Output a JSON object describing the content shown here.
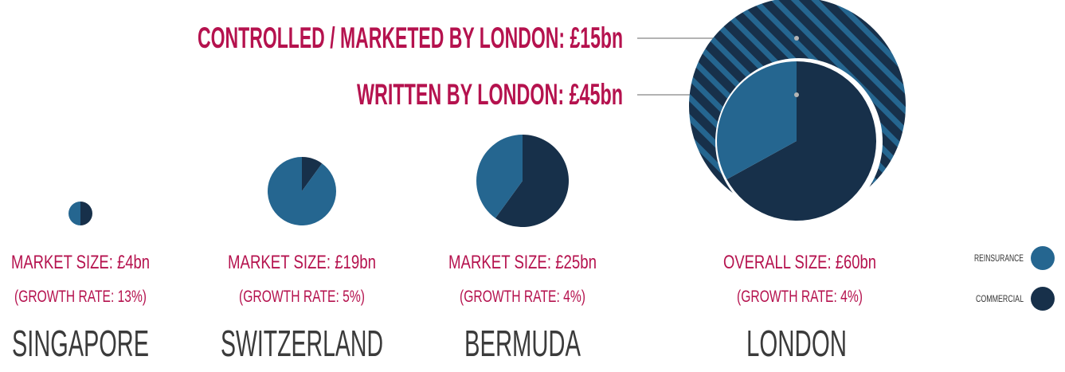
{
  "colors": {
    "reinsurance": "#256690",
    "commercial": "#17304a",
    "accent": "#b5124e",
    "name": "#3b3b3b"
  },
  "callouts": {
    "controlled": "CONTROLLED / MARKETED BY LONDON: £15bn",
    "written": "WRITTEN BY LONDON: £45bn"
  },
  "legend": {
    "reinsurance": "REINSURANCE",
    "commercial": "COMMERCIAL"
  },
  "chart_data": {
    "type": "pie",
    "series_names": [
      "REINSURANCE",
      "COMMERCIAL"
    ],
    "markets": [
      {
        "name": "SINGAPORE",
        "size_label": "MARKET SIZE: £4bn",
        "growth_label": "(GROWTH RATE: 13%)",
        "size_bn": 4,
        "growth_pct": 13,
        "reinsurance_share": 0.5
      },
      {
        "name": "SWITZERLAND",
        "size_label": "MARKET SIZE: £19bn",
        "growth_label": "(GROWTH RATE: 5%)",
        "size_bn": 19,
        "growth_pct": 5,
        "reinsurance_share": 0.9
      },
      {
        "name": "BERMUDA",
        "size_label": "MARKET SIZE: £25bn",
        "growth_label": "(GROWTH RATE: 4%)",
        "size_bn": 25,
        "growth_pct": 4,
        "reinsurance_share": 0.4
      },
      {
        "name": "LONDON",
        "size_label": "OVERALL SIZE: £60bn",
        "growth_label": "(GROWTH RATE: 4%)",
        "size_bn": 60,
        "growth_pct": 4,
        "reinsurance_share": 0.33,
        "written_bn": 45,
        "controlled_bn": 15
      }
    ]
  }
}
